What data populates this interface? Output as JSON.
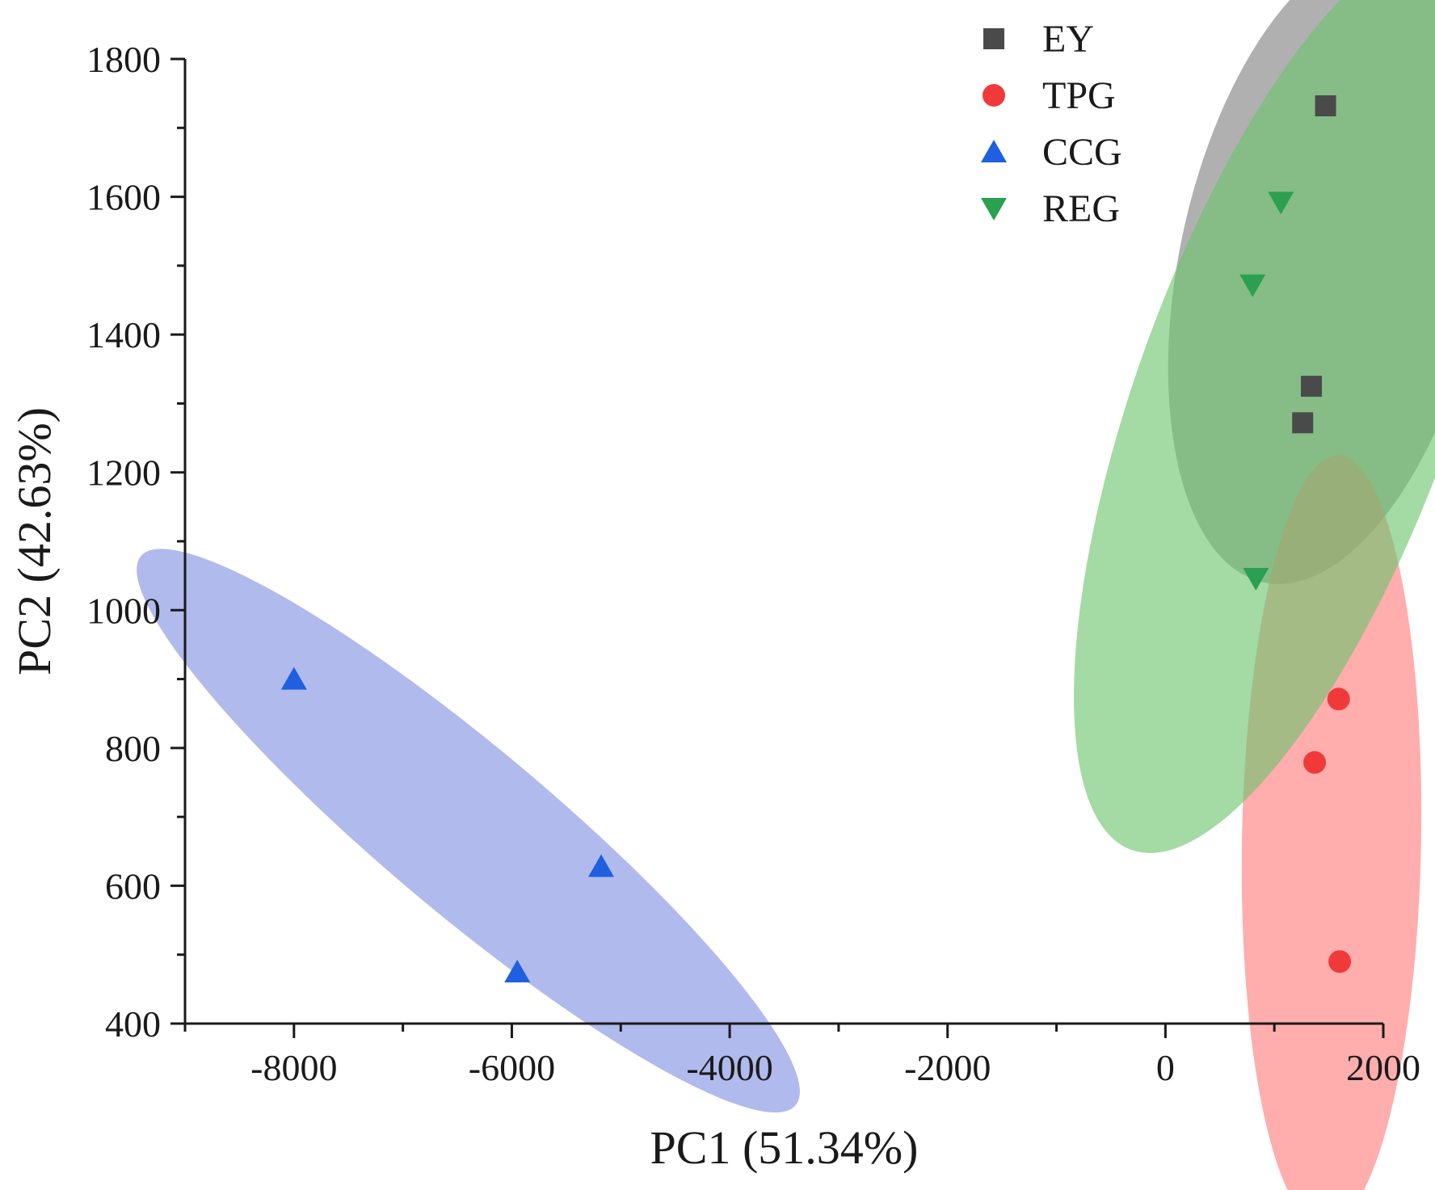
{
  "chart_data": {
    "type": "scatter",
    "title": "",
    "xlabel": "PC1 (51.34%)",
    "ylabel": "PC2 (42.63%)",
    "xlim": [
      -9000,
      2000
    ],
    "ylim": [
      400,
      1800
    ],
    "x_major_ticks": [
      -8000,
      -6000,
      -4000,
      -2000,
      0,
      2000
    ],
    "x_tick_labels": [
      "-8000",
      "-6000",
      "-4000",
      "-2000",
      "0",
      "2000"
    ],
    "y_major_ticks": [
      400,
      600,
      800,
      1000,
      1200,
      1400,
      1600,
      1800
    ],
    "y_tick_labels": [
      "400",
      "600",
      "800",
      "1000",
      "1200",
      "1400",
      "1600",
      "1800"
    ],
    "x_minor_step": 1000,
    "y_minor_step": 100,
    "grid": false,
    "legend_position": "top-right",
    "series": [
      {
        "name": "EY",
        "marker": "square",
        "color": "#4a4a4a",
        "ellipse_color": "#7f7f7f",
        "ellipse": {
          "cx": 1520,
          "cy": 1500,
          "rx": 470,
          "ry": 220,
          "angle": 78
        },
        "points": [
          {
            "x": 1470,
            "y": 1732
          },
          {
            "x": 1340,
            "y": 1325
          },
          {
            "x": 1260,
            "y": 1272
          }
        ]
      },
      {
        "name": "TPG",
        "marker": "circle",
        "color": "#f03a3a",
        "ellipse_color": "#ff7a7a",
        "ellipse": {
          "cx": 1525,
          "cy": 665,
          "rx": 560,
          "ry": 130,
          "angle": 89
        },
        "points": [
          {
            "x": 1590,
            "y": 871
          },
          {
            "x": 1370,
            "y": 779
          },
          {
            "x": 1600,
            "y": 490
          }
        ]
      },
      {
        "name": "CCG",
        "marker": "triangle-up",
        "color": "#1f5fe0",
        "ellipse_color": "#7f8fe0",
        "ellipse": {
          "cx": -6400,
          "cy": 680,
          "rx": 620,
          "ry": 120,
          "angle": -40
        },
        "points": [
          {
            "x": -8000,
            "y": 900
          },
          {
            "x": -5180,
            "y": 628
          },
          {
            "x": -5950,
            "y": 475
          }
        ]
      },
      {
        "name": "REG",
        "marker": "triangle-down",
        "color": "#2aa050",
        "ellipse_color": "#6cc46c",
        "ellipse": {
          "cx": 1200,
          "cy": 1310,
          "rx": 700,
          "ry": 230,
          "angle": 70
        },
        "points": [
          {
            "x": 1060,
            "y": 1592
          },
          {
            "x": 800,
            "y": 1472
          },
          {
            "x": 830,
            "y": 1046
          }
        ]
      }
    ]
  }
}
